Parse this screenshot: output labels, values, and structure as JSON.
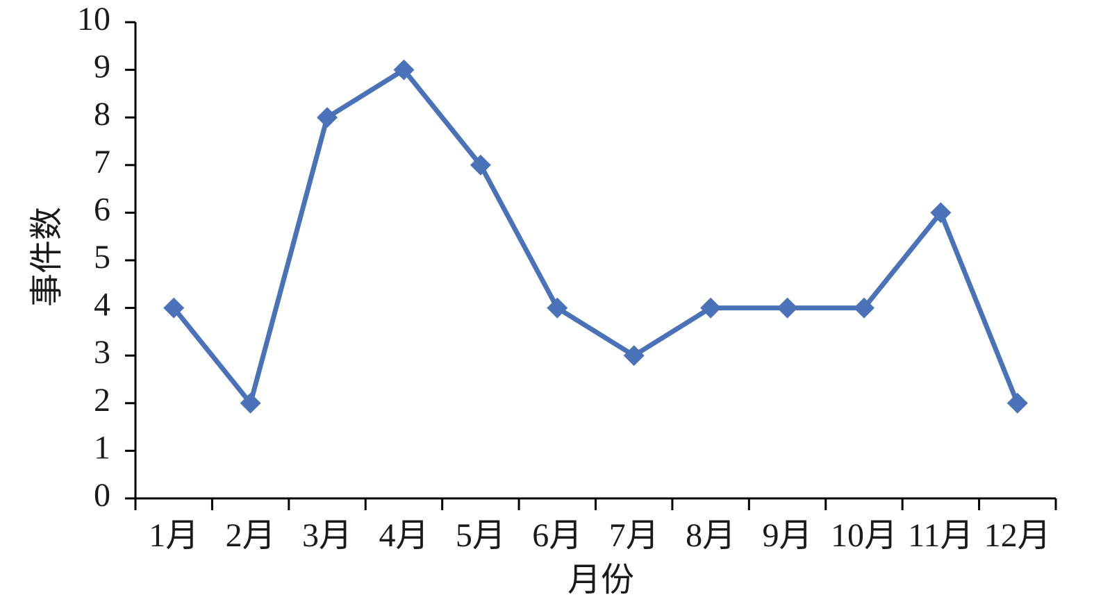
{
  "chart_data": {
    "type": "line",
    "x_label": "月份",
    "y_label": "事件数",
    "categories": [
      "1月",
      "2月",
      "3月",
      "4月",
      "5月",
      "6月",
      "7月",
      "8月",
      "9月",
      "10月",
      "11月",
      "12月"
    ],
    "values": [
      4,
      2,
      8,
      9,
      7,
      4,
      3,
      4,
      4,
      4,
      6,
      2
    ],
    "color": "#4a72b8",
    "ylim": [
      0,
      10
    ],
    "yticks": [
      0,
      1,
      2,
      3,
      4,
      5,
      6,
      7,
      8,
      9,
      10
    ],
    "grid": false
  }
}
